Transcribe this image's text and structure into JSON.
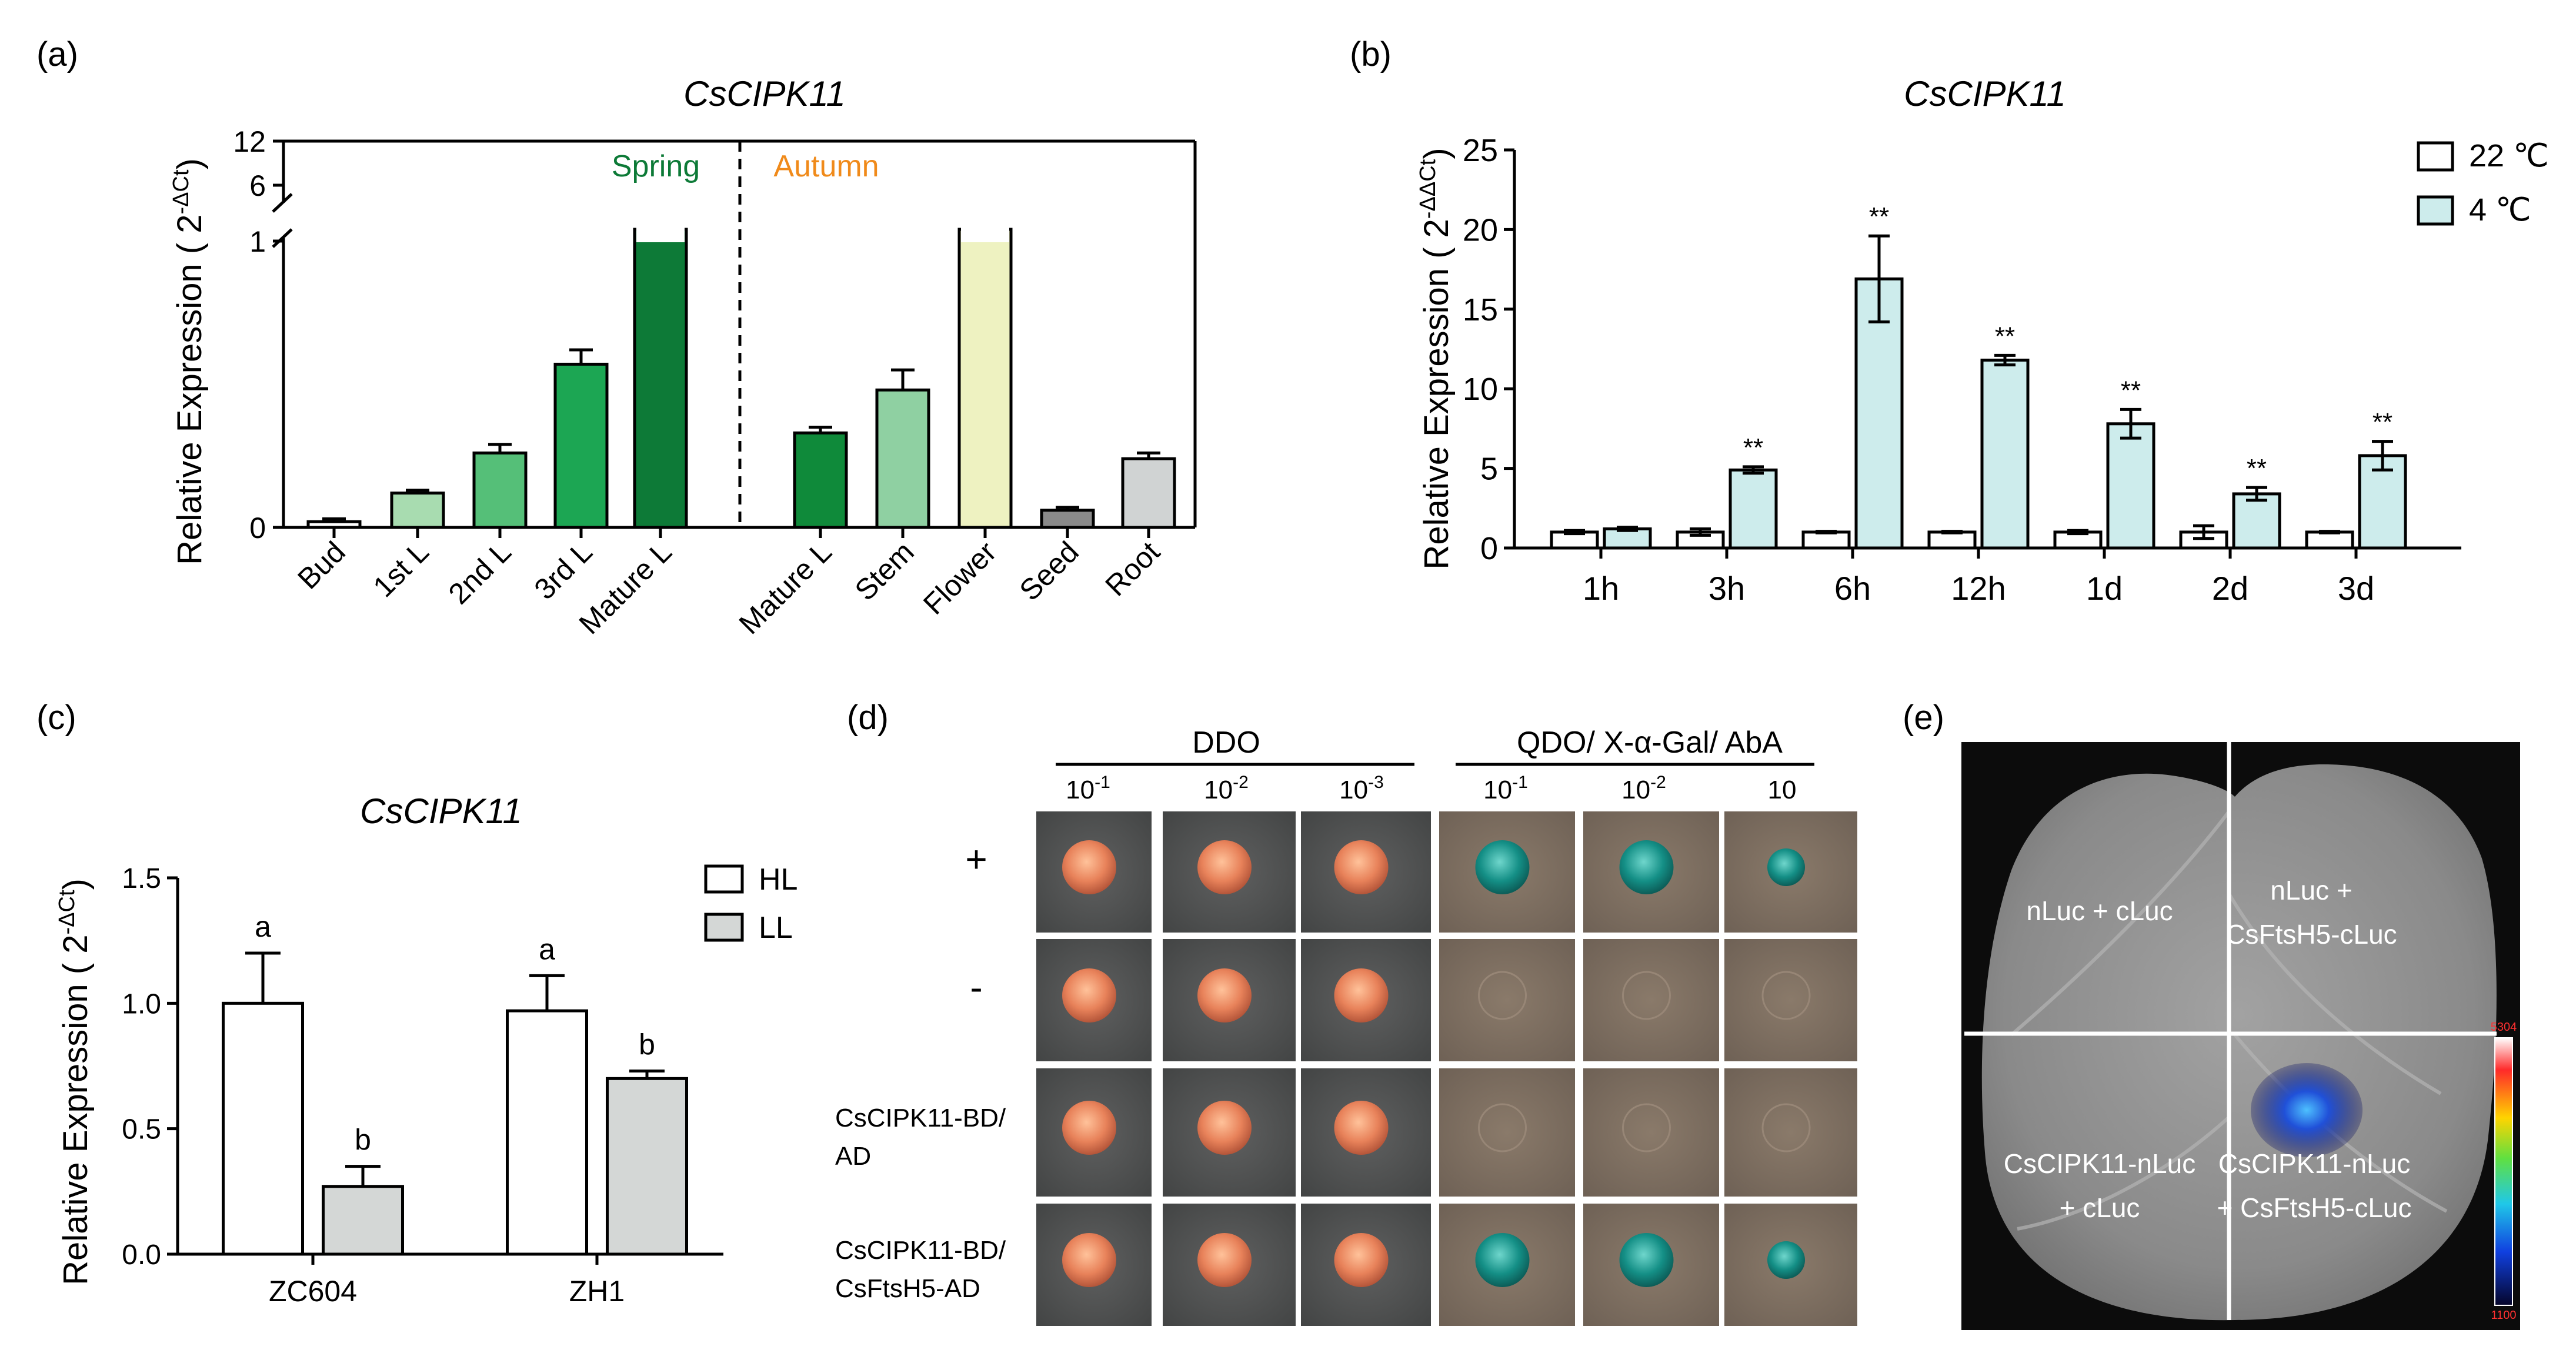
{
  "colors": {
    "bud": "#ffffff",
    "l1": "#a8dcb0",
    "l2": "#55bf78",
    "l3": "#1ca653",
    "matureS": "#0d7a37",
    "matureA": "#0f8a3a",
    "stem": "#8fd0a2",
    "flower": "#eef2c1",
    "seed": "#8a8a8a",
    "root": "#d0d3d3",
    "springText": "#0d7a37",
    "autumnText": "#f08a1a",
    "c22": "#ffffff",
    "c4": "#cdecec",
    "hl": "#ffffff",
    "ll": "#d4d7d6",
    "leafBg": "#0c0c0c"
  },
  "chart_data": [
    {
      "panel": "(a)",
      "type": "bar",
      "title": "CsCIPK11",
      "ylabel": "Relative Expression ( 2",
      "ylabel_sup": "-ΔCt",
      "ylabel_close": ")",
      "yticks_low": [
        "0",
        "1"
      ],
      "yticks_high": [
        "6",
        "12"
      ],
      "group_labels": [
        "Spring",
        "Autumn"
      ],
      "categories": [
        "Bud",
        "1st L",
        "2nd L",
        "3rd L",
        "Mature L",
        "Mature L",
        "Stem",
        "Flower",
        "Seed",
        "Root"
      ],
      "values": [
        0.02,
        0.12,
        0.26,
        0.57,
        5.0,
        0.33,
        0.48,
        4.8,
        0.06,
        0.24
      ],
      "errors": [
        0.01,
        0.01,
        0.03,
        0.05,
        0.2,
        0.02,
        0.07,
        0.2,
        0.01,
        0.02
      ],
      "ylim": [
        0,
        12
      ],
      "break": [
        1,
        6
      ]
    },
    {
      "panel": "(b)",
      "type": "bar",
      "title": "CsCIPK11",
      "ylabel": "Relative Expression ( 2",
      "ylabel_sup": "-ΔΔCt",
      "ylabel_close": ")",
      "categories": [
        "1h",
        "3h",
        "6h",
        "12h",
        "1d",
        "2d",
        "3d"
      ],
      "series": [
        {
          "name": "22 ℃",
          "values": [
            1.0,
            1.0,
            1.0,
            1.0,
            1.0,
            1.0,
            1.0
          ],
          "errors": [
            0.1,
            0.2,
            0.05,
            0.05,
            0.1,
            0.4,
            0.05
          ]
        },
        {
          "name": "4 ℃",
          "values": [
            1.2,
            4.9,
            16.9,
            11.8,
            7.8,
            3.4,
            5.8
          ],
          "errors": [
            0.1,
            0.2,
            2.7,
            0.3,
            0.9,
            0.4,
            0.9
          ]
        }
      ],
      "significance": [
        "",
        "**",
        "**",
        "**",
        "**",
        "**",
        "**"
      ],
      "yticks": [
        "0",
        "5",
        "10",
        "15",
        "20",
        "25"
      ],
      "ylim": [
        0,
        25
      ]
    },
    {
      "panel": "(c)",
      "type": "bar",
      "title": "CsCIPK11",
      "ylabel": "Relative Expression ( 2",
      "ylabel_sup": "-ΔCt",
      "ylabel_close": ")",
      "categories": [
        "ZC604",
        "ZH1"
      ],
      "series": [
        {
          "name": "HL",
          "values": [
            1.0,
            0.97
          ],
          "errors": [
            0.2,
            0.14
          ],
          "letters": [
            "a",
            "a"
          ]
        },
        {
          "name": "LL",
          "values": [
            0.27,
            0.7
          ],
          "errors": [
            0.08,
            0.03
          ],
          "letters": [
            "b",
            "b"
          ]
        }
      ],
      "yticks": [
        "0.0",
        "0.5",
        "1.0",
        "1.5"
      ],
      "ylim": [
        0,
        1.5
      ]
    }
  ],
  "panel_d": {
    "label": "(d)",
    "headers": [
      "DDO",
      "QDO/ X-α-Gal/ AbA"
    ],
    "dilutions": [
      {
        "base": "10",
        "exp": "-1"
      },
      {
        "base": "10",
        "exp": "-2"
      },
      {
        "base": "10",
        "exp": "-3"
      },
      {
        "base": "10",
        "exp": "-1"
      },
      {
        "base": "10",
        "exp": "-2"
      },
      {
        "base": "10",
        "exp": ""
      }
    ],
    "rows": [
      {
        "label1": "+",
        "label2": "",
        "growth": [
          1,
          1,
          1,
          1,
          1,
          1
        ],
        "blue": [
          0,
          0,
          0,
          1,
          1,
          1
        ]
      },
      {
        "label1": "-",
        "label2": "",
        "growth": [
          1,
          1,
          1,
          0,
          0,
          0
        ],
        "blue": [
          0,
          0,
          0,
          0,
          0,
          0
        ]
      },
      {
        "label1": "CsCIPK11-BD/",
        "label2": "AD",
        "growth": [
          1,
          1,
          1,
          0,
          0,
          0
        ],
        "blue": [
          0,
          0,
          0,
          0,
          0,
          0
        ]
      },
      {
        "label1": "CsCIPK11-BD/",
        "label2": "CsFtsH5-AD",
        "growth": [
          1,
          1,
          1,
          1,
          1,
          1
        ],
        "blue": [
          0,
          0,
          0,
          1,
          1,
          1
        ]
      }
    ]
  },
  "panel_e": {
    "label": "(e)",
    "quadrants": [
      {
        "line1": "nLuc + cLuc",
        "line2": ""
      },
      {
        "line1": "nLuc +",
        "line2": "CsFtsH5-cLuc"
      },
      {
        "line1": "CsCIPK11-nLuc",
        "line2": "+ cLuc"
      },
      {
        "line1": "CsCIPK11-nLuc",
        "line2": "+ CsFtsH5-cLuc"
      }
    ],
    "scale_max": "5304",
    "scale_min": "1100"
  }
}
